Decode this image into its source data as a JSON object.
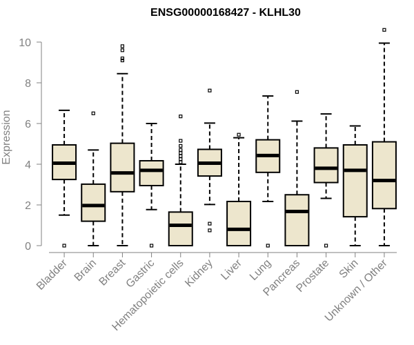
{
  "chart_data": {
    "type": "boxplot",
    "title": "ENSG00000168427 - KLHL30",
    "xlabel": "",
    "ylabel": "Expression",
    "ylim": [
      0,
      10.6
    ],
    "yticks": [
      0,
      2,
      4,
      6,
      8,
      10
    ],
    "grid": false,
    "colors": {
      "box_fill": "#ede6cd",
      "stroke": "#000000",
      "axis": "#808080"
    },
    "categories": [
      "Bladder",
      "Brain",
      "Breast",
      "Gastric",
      "Hematopoietic cells",
      "Kidney",
      "Liver",
      "Lung",
      "Pancreas",
      "Prostate",
      "Skin",
      "Unknown / Other"
    ],
    "boxes": [
      {
        "category": "Bladder",
        "whisker_low": 1.5,
        "q1": 3.25,
        "median": 4.05,
        "q3": 4.95,
        "whisker_high": 6.65,
        "outliers": [
          0.0
        ]
      },
      {
        "category": "Brain",
        "whisker_low": 0.0,
        "q1": 1.2,
        "median": 1.97,
        "q3": 3.02,
        "whisker_high": 4.7,
        "outliers": [
          6.5
        ]
      },
      {
        "category": "Breast",
        "whisker_low": 0.0,
        "q1": 2.65,
        "median": 3.57,
        "q3": 5.03,
        "whisker_high": 8.45,
        "outliers": [
          9.1,
          9.2,
          9.6,
          9.8
        ]
      },
      {
        "category": "Gastric",
        "whisker_low": 1.77,
        "q1": 2.95,
        "median": 3.7,
        "q3": 4.17,
        "whisker_high": 6.0,
        "outliers": [
          0.0
        ]
      },
      {
        "category": "Hematopoietic cells",
        "whisker_low": 0.0,
        "q1": 0.0,
        "median": 1.0,
        "q3": 1.65,
        "whisker_high": 4.0,
        "outliers": [
          4.1,
          4.25,
          4.4,
          4.55,
          4.7,
          4.9,
          5.15,
          6.35
        ]
      },
      {
        "category": "Kidney",
        "whisker_low": 2.02,
        "q1": 3.42,
        "median": 4.05,
        "q3": 4.73,
        "whisker_high": 6.02,
        "outliers": [
          0.75,
          1.08,
          7.62
        ]
      },
      {
        "category": "Liver",
        "whisker_low": 0.0,
        "q1": 0.0,
        "median": 0.8,
        "q3": 2.17,
        "whisker_high": 5.3,
        "outliers": [
          5.45
        ]
      },
      {
        "category": "Lung",
        "whisker_low": 2.17,
        "q1": 3.6,
        "median": 4.43,
        "q3": 5.2,
        "whisker_high": 7.35,
        "outliers": [
          0.0
        ]
      },
      {
        "category": "Pancreas",
        "whisker_low": 0.0,
        "q1": 0.0,
        "median": 1.68,
        "q3": 2.5,
        "whisker_high": 6.12,
        "outliers": [
          7.55
        ]
      },
      {
        "category": "Prostate",
        "whisker_low": 2.32,
        "q1": 3.1,
        "median": 3.8,
        "q3": 4.8,
        "whisker_high": 6.47,
        "outliers": [
          0.0
        ]
      },
      {
        "category": "Skin",
        "whisker_low": 0.0,
        "q1": 1.42,
        "median": 3.7,
        "q3": 4.95,
        "whisker_high": 5.88,
        "outliers": []
      },
      {
        "category": "Unknown / Other",
        "whisker_low": 0.0,
        "q1": 1.82,
        "median": 3.2,
        "q3": 5.1,
        "whisker_high": 9.95,
        "outliers": [
          10.6
        ]
      }
    ]
  }
}
